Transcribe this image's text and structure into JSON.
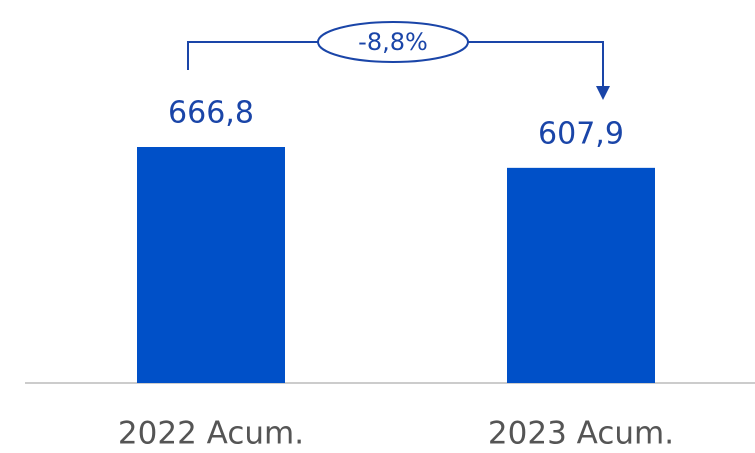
{
  "chart_data": {
    "type": "bar",
    "categories": [
      "2022 Acum.",
      "2023 Acum."
    ],
    "values": [
      666.8,
      607.9
    ],
    "value_labels": [
      "666,8",
      "607,9"
    ],
    "color": "#0050c8",
    "annotation": "-8,8%"
  }
}
